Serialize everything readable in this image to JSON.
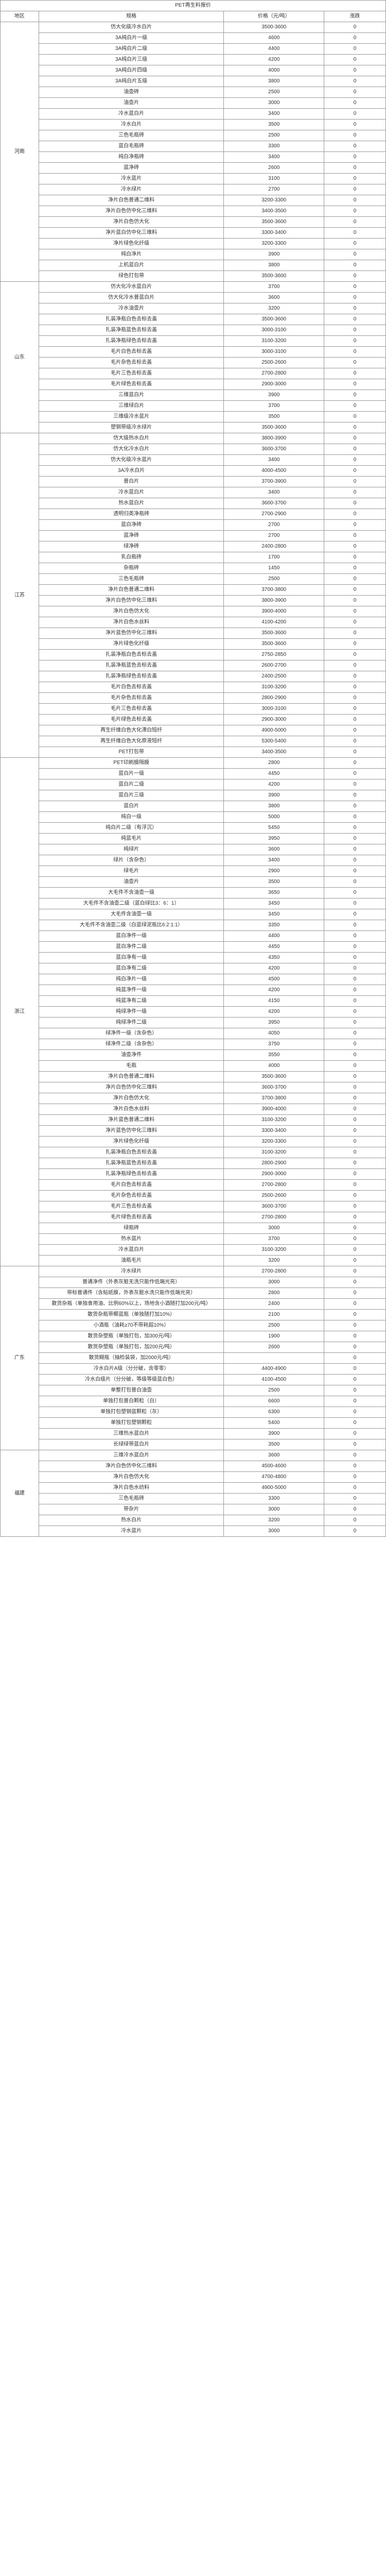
{
  "title": "PET再生料报价",
  "header": {
    "region": "地区",
    "spec": "规格",
    "price": "价格（元/吨）",
    "change": "涨跌"
  },
  "regions": [
    {
      "name": "河南",
      "rows": [
        {
          "spec": "仿大化级冷水白片",
          "price": "3500-3600",
          "change": "0"
        },
        {
          "spec": "3A纯白片一级",
          "price": "4600",
          "change": "0"
        },
        {
          "spec": "3A纯白片二级",
          "price": "4400",
          "change": "0"
        },
        {
          "spec": "3A纯白片三级",
          "price": "4200",
          "change": "0"
        },
        {
          "spec": "3A纯白片四级",
          "price": "4000",
          "change": "0"
        },
        {
          "spec": "3A纯白片五级",
          "price": "3800",
          "change": "0"
        },
        {
          "spec": "油壶砖",
          "price": "2500",
          "change": "0"
        },
        {
          "spec": "油壶片",
          "price": "3000",
          "change": "0"
        },
        {
          "spec": "冷水蓝白片",
          "price": "3400",
          "change": "0"
        },
        {
          "spec": "冷水白片",
          "price": "3500",
          "change": "0"
        },
        {
          "spec": "三色毛瓶砖",
          "price": "2500",
          "change": "0"
        },
        {
          "spec": "蓝白毛瓶砖",
          "price": "3300",
          "change": "0"
        },
        {
          "spec": "纯白净瓶砖",
          "price": "3400",
          "change": "0"
        },
        {
          "spec": "蓝净砖",
          "price": "2600",
          "change": "0"
        },
        {
          "spec": "冷水蓝片",
          "price": "3100",
          "change": "0"
        },
        {
          "spec": "冷水绿片",
          "price": "2700",
          "change": "0"
        },
        {
          "spec": "净片白色普通二维料",
          "price": "3200-3300",
          "change": "0"
        },
        {
          "spec": "净片白色仿中化三维料",
          "price": "3400-3500",
          "change": "0"
        },
        {
          "spec": "净片白色仿大化",
          "price": "3500-3600",
          "change": "0"
        },
        {
          "spec": "净片蓝白仿中化三维料",
          "price": "3300-3400",
          "change": "0"
        },
        {
          "spec": "净片绿色化纤级",
          "price": "3200-3300",
          "change": "0"
        },
        {
          "spec": "纯白净片",
          "price": "3900",
          "change": "0"
        },
        {
          "spec": "上机蓝白片",
          "price": "3800",
          "change": "0"
        },
        {
          "spec": "绿色打包带",
          "price": "3500-3600",
          "change": "0"
        }
      ]
    },
    {
      "name": "山东",
      "rows": [
        {
          "spec": "仿大化冷水蓝白片",
          "price": "3700",
          "change": "0"
        },
        {
          "spec": "仿大化冷水普蓝白片",
          "price": "3600",
          "change": "0"
        },
        {
          "spec": "冷水油壶片",
          "price": "3200",
          "change": "0"
        },
        {
          "spec": "扎装净瓶白色去标去盖",
          "price": "3500-3600",
          "change": "0"
        },
        {
          "spec": "扎装净瓶蓝色去标去盖",
          "price": "3000-3100",
          "change": "0"
        },
        {
          "spec": "扎装净瓶绿色去标去盖",
          "price": "3100-3200",
          "change": "0"
        },
        {
          "spec": "毛片白色去标去盖",
          "price": "3000-3100",
          "change": "0"
        },
        {
          "spec": "毛片杂色去标去盖",
          "price": "2500-2600",
          "change": "0"
        },
        {
          "spec": "毛片三色去标去盖",
          "price": "2700-2800",
          "change": "0"
        },
        {
          "spec": "毛片绿色去标去盖",
          "price": "2900-3000",
          "change": "0"
        },
        {
          "spec": "三维蓝白片",
          "price": "3900",
          "change": "0"
        },
        {
          "spec": "三维绿白片",
          "price": "3700",
          "change": "0"
        },
        {
          "spec": "三维级冷水蓝片",
          "price": "3500",
          "change": "0"
        },
        {
          "spec": "塑钢带级冷水绿片",
          "price": "3500-3600",
          "change": "0"
        }
      ]
    },
    {
      "name": "江苏",
      "rows": [
        {
          "spec": "仿大级热水白片",
          "price": "3800-3900",
          "change": "0"
        },
        {
          "spec": "仿大化冷水白片",
          "price": "3600-3700",
          "change": "0"
        },
        {
          "spec": "仿大化级冷水蓝片",
          "price": "3400",
          "change": "0"
        },
        {
          "spec": "3A冷水白片",
          "price": "4000-4500",
          "change": "0"
        },
        {
          "spec": "普白片",
          "price": "3700-3900",
          "change": "0"
        },
        {
          "spec": "冷水蓝白片",
          "price": "3400",
          "change": "0"
        },
        {
          "spec": "热水蓝白片",
          "price": "3600-3700",
          "change": "0"
        },
        {
          "spec": "透明归类净瓶砖",
          "price": "2700-2900",
          "change": "0"
        },
        {
          "spec": "蓝白净砖",
          "price": "2700",
          "change": "0"
        },
        {
          "spec": "蓝净砖",
          "price": "2700",
          "change": "0"
        },
        {
          "spec": "绿净砖",
          "price": "2400-2800",
          "change": "0"
        },
        {
          "spec": "乳白瓶砖",
          "price": "1700",
          "change": "0"
        },
        {
          "spec": "杂瓶砖",
          "price": "1450",
          "change": "0"
        },
        {
          "spec": "三色毛瓶砖",
          "price": "2500",
          "change": "0"
        },
        {
          "spec": "净片白色普通二维料",
          "price": "3700-3800",
          "change": "0"
        },
        {
          "spec": "净片白色仿中化三维料",
          "price": "3800-3900",
          "change": "0"
        },
        {
          "spec": "净片白色仿大化",
          "price": "3900-4000",
          "change": "0"
        },
        {
          "spec": "净片白色水丝料",
          "price": "4100-4200",
          "change": "0"
        },
        {
          "spec": "净片蓝色仿中化三维料",
          "price": "3500-3600",
          "change": "0"
        },
        {
          "spec": "净片绿色化纤级",
          "price": "3500-3600",
          "change": "0"
        },
        {
          "spec": "扎装净瓶白色去标去盖",
          "price": "2750-2850",
          "change": "0"
        },
        {
          "spec": "扎装净瓶蓝色去标去盖",
          "price": "2600-2700",
          "change": "0"
        },
        {
          "spec": "扎装净瓶绿色去标去盖",
          "price": "2400-2500",
          "change": "0"
        },
        {
          "spec": "毛片白色去标去盖",
          "price": "3100-3200",
          "change": "0"
        },
        {
          "spec": "毛片杂色去标去盖",
          "price": "2800-2900",
          "change": "0"
        },
        {
          "spec": "毛片三色去标去盖",
          "price": "3000-3100",
          "change": "0"
        },
        {
          "spec": "毛片绿色去标去盖",
          "price": "2900-3000",
          "change": "0"
        },
        {
          "spec": "再生纤维白色大化漂白短纤",
          "price": "4900-5000",
          "change": "0"
        },
        {
          "spec": "再生纤维白色大化原液短纤",
          "price": "5300-5400",
          "change": "0"
        },
        {
          "spec": "PET打包带",
          "price": "3400-3500",
          "change": "0"
        }
      ]
    },
    {
      "name": "浙江",
      "rows": [
        {
          "spec": "PET印刷膜隔膜",
          "price": "2800",
          "change": "0"
        },
        {
          "spec": "蓝白片一级",
          "price": "4450",
          "change": "0"
        },
        {
          "spec": "蓝白片二级",
          "price": "4200",
          "change": "0"
        },
        {
          "spec": "蓝白片三级",
          "price": "3900",
          "change": "0"
        },
        {
          "spec": "蓝白片",
          "price": "3800",
          "change": "0"
        },
        {
          "spec": "纯白一级",
          "price": "5000",
          "change": "0"
        },
        {
          "spec": "纯白片二级（有浮沉）",
          "price": "5450",
          "change": "0"
        },
        {
          "spec": "纯蓝毛片",
          "price": "3950",
          "change": "0"
        },
        {
          "spec": "纯绿片",
          "price": "3600",
          "change": "0"
        },
        {
          "spec": "绿片（含杂色）",
          "price": "3400",
          "change": "0"
        },
        {
          "spec": "绿毛片",
          "price": "2900",
          "change": "0"
        },
        {
          "spec": "油壶片",
          "price": "3500",
          "change": "0"
        },
        {
          "spec": "大毛件不含油壶一级",
          "price": "3650",
          "change": "0"
        },
        {
          "spec": "大毛件不含油壶二级（蓝白绿比3：6：1）",
          "price": "3450",
          "change": "0"
        },
        {
          "spec": "大毛件含油壶一级",
          "price": "3450",
          "change": "0"
        },
        {
          "spec": "大毛件不含油壶二级（白蓝绿泥瓶比6:2:1:1）",
          "price": "3350",
          "change": "0"
        },
        {
          "spec": "蓝白净件一级",
          "price": "4400",
          "change": "0"
        },
        {
          "spec": "蓝白净件二级",
          "price": "4450",
          "change": "0"
        },
        {
          "spec": "蓝白净有一级",
          "price": "4350",
          "change": "0"
        },
        {
          "spec": "蓝白净有二级",
          "price": "4200",
          "change": "0"
        },
        {
          "spec": "纯白净片一级",
          "price": "4500",
          "change": "0"
        },
        {
          "spec": "纯蓝净件一级",
          "price": "4200",
          "change": "0"
        },
        {
          "spec": "纯蓝净有二级",
          "price": "4150",
          "change": "0"
        },
        {
          "spec": "纯绿净件一级",
          "price": "4200",
          "change": "0"
        },
        {
          "spec": "纯绿净件二级",
          "price": "3950",
          "change": "0"
        },
        {
          "spec": "绿净件一级（含杂色）",
          "price": "4050",
          "change": "0"
        },
        {
          "spec": "绿净件二级（含杂色）",
          "price": "3750",
          "change": "0"
        },
        {
          "spec": "油壶净件",
          "price": "3550",
          "change": "0"
        },
        {
          "spec": "毛瓶",
          "price": "4000",
          "change": "0"
        },
        {
          "spec": "净片白色普通二维料",
          "price": "3500-3600",
          "change": "0"
        },
        {
          "spec": "净片白色仿中化三维料",
          "price": "3600-3700",
          "change": "0"
        },
        {
          "spec": "净片白色仿大化",
          "price": "3700-3800",
          "change": "0"
        },
        {
          "spec": "净片白色水丝料",
          "price": "3900-4000",
          "change": "0"
        },
        {
          "spec": "净片蓝色普通二维料",
          "price": "3100-3200",
          "change": "0"
        },
        {
          "spec": "净片蓝色仿中化三维料",
          "price": "3300-3400",
          "change": "0"
        },
        {
          "spec": "净片绿色化纤级",
          "price": "3200-3300",
          "change": "0"
        },
        {
          "spec": "扎装净瓶白色去标去盖",
          "price": "3100-3200",
          "change": "0"
        },
        {
          "spec": "扎装净瓶蓝色去标去盖",
          "price": "2800-2900",
          "change": "0"
        },
        {
          "spec": "扎装净瓶绿色去标去盖",
          "price": "2900-3000",
          "change": "0"
        },
        {
          "spec": "毛片白色去标去盖",
          "price": "2700-2800",
          "change": "0"
        },
        {
          "spec": "毛片杂色去标去盖",
          "price": "2500-2600",
          "change": "0"
        },
        {
          "spec": "毛片三色去标去盖",
          "price": "3600-3700",
          "change": "0"
        },
        {
          "spec": "毛片绿色去标去盖",
          "price": "2700-2800",
          "change": "0"
        },
        {
          "spec": "绿瓶砖",
          "price": "3000",
          "change": "0"
        },
        {
          "spec": "热水蓝片",
          "price": "3700",
          "change": "0"
        },
        {
          "spec": "冷水蓝白片",
          "price": "3100-3200",
          "change": "0"
        },
        {
          "spec": "油瓶毛片",
          "price": "3200",
          "change": "0"
        }
      ]
    },
    {
      "name": "广东",
      "rows": [
        {
          "spec": "冷水绿片",
          "price": "2700-2800",
          "change": "0"
        },
        {
          "spec": "普通净件（外表灰脏无洗只能作低端光亮）",
          "price": "3000",
          "change": "0"
        },
        {
          "spec": "带标普通件（含贴纸膜，外表灰脏水洗只能作低端光亮）",
          "price": "2800",
          "change": "0"
        },
        {
          "spec": "散货杂瓶（单独食用油、比例60%以上，场地含小酒随打加200元/吨）",
          "price": "2400",
          "change": "0"
        },
        {
          "spec": "散货杂瓶带椰蓝瓶（单独随打加10%）",
          "price": "2100",
          "change": "0"
        },
        {
          "spec": "小酒瓶（油耗≥70不带耗超10%）",
          "price": "2500",
          "change": "0"
        },
        {
          "spec": "散货杂塑瓶（单独打包，加300元/吨）",
          "price": "1900",
          "change": "0"
        },
        {
          "spec": "散货杂塑瓶（单独打包，加200元/吨）",
          "price": "2600",
          "change": "0"
        },
        {
          "spec": "散货糊瓶（抽检装袋，加2000元/吨）",
          "price": "",
          "change": "0"
        },
        {
          "spec": "冷水白片A级（分分破，含零零）",
          "price": "4400-4900",
          "change": "0"
        },
        {
          "spec": "冷水白级片（分分破，等级等级蓝白色）",
          "price": "4100-4500",
          "change": "0"
        },
        {
          "spec": "单整打包普白油壶",
          "price": "2500",
          "change": "0"
        },
        {
          "spec": "单独打包普白颗粒（白）",
          "price": "6600",
          "change": "0"
        },
        {
          "spec": "单独打包塑钢蓝颗粒（灰）",
          "price": "6300",
          "change": "0"
        },
        {
          "spec": "单独打包塑钢颗粒",
          "price": "5400",
          "change": "0"
        },
        {
          "spec": "三维热水蓝白片",
          "price": "3900",
          "change": "0"
        },
        {
          "spec": "长绿绿带蓝白片",
          "price": "3500",
          "change": "0"
        }
      ]
    },
    {
      "name": "福建",
      "rows": [
        {
          "spec": "三维冷水蓝白片",
          "price": "3600",
          "change": "0"
        },
        {
          "spec": "净片白色仿中化三维料",
          "price": "4500-4600",
          "change": "0"
        },
        {
          "spec": "净片白色仿大化",
          "price": "4700-4800",
          "change": "0"
        },
        {
          "spec": "净片白色水纺料",
          "price": "4900-5000",
          "change": "0"
        },
        {
          "spec": "三色毛瓶砖",
          "price": "3300",
          "change": "0"
        },
        {
          "spec": "带杂片",
          "price": "3000",
          "change": "0"
        },
        {
          "spec": "热水白片",
          "price": "3200",
          "change": "0"
        },
        {
          "spec": "冷水蓝片",
          "price": "3000",
          "change": "0"
        }
      ]
    }
  ]
}
